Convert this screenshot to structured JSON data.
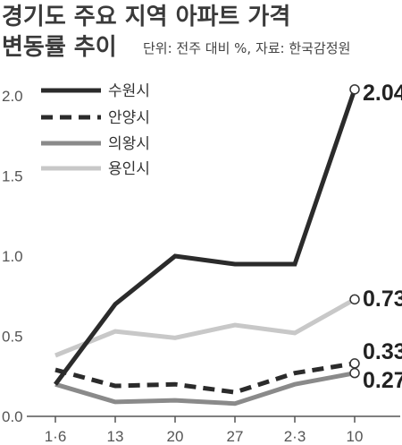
{
  "chart_data": {
    "type": "line",
    "title_line1": "경기도 주요 지역 아파트 가격",
    "title_line2": "변동률 추이",
    "unit_note": "단위: 전주 대비 %, 자료: 한국감정원",
    "categories": [
      "1·6",
      "13",
      "20",
      "27",
      "2·3",
      "10"
    ],
    "ylim": [
      0,
      2.2
    ],
    "yticks": [
      "0.0",
      "0.5",
      "1.0",
      "1.5",
      "2.0"
    ],
    "grid": false,
    "legend_position": "top-left",
    "series": [
      {
        "name": "수원시",
        "values": [
          0.2,
          0.7,
          1.0,
          0.95,
          0.95,
          2.04
        ],
        "color": "#2b2b2b",
        "dash": "solid",
        "end_label": "2.04"
      },
      {
        "name": "안양시",
        "values": [
          0.29,
          0.19,
          0.2,
          0.15,
          0.27,
          0.33
        ],
        "color": "#2b2b2b",
        "dash": "dashed",
        "end_label": "0.33"
      },
      {
        "name": "의왕시",
        "values": [
          0.2,
          0.09,
          0.1,
          0.08,
          0.2,
          0.27
        ],
        "color": "#8a8a8a",
        "dash": "solid",
        "end_label": "0.27"
      },
      {
        "name": "용인시",
        "values": [
          0.38,
          0.53,
          0.49,
          0.57,
          0.52,
          0.73
        ],
        "color": "#c8c8c8",
        "dash": "solid",
        "end_label": "0.73"
      }
    ]
  }
}
